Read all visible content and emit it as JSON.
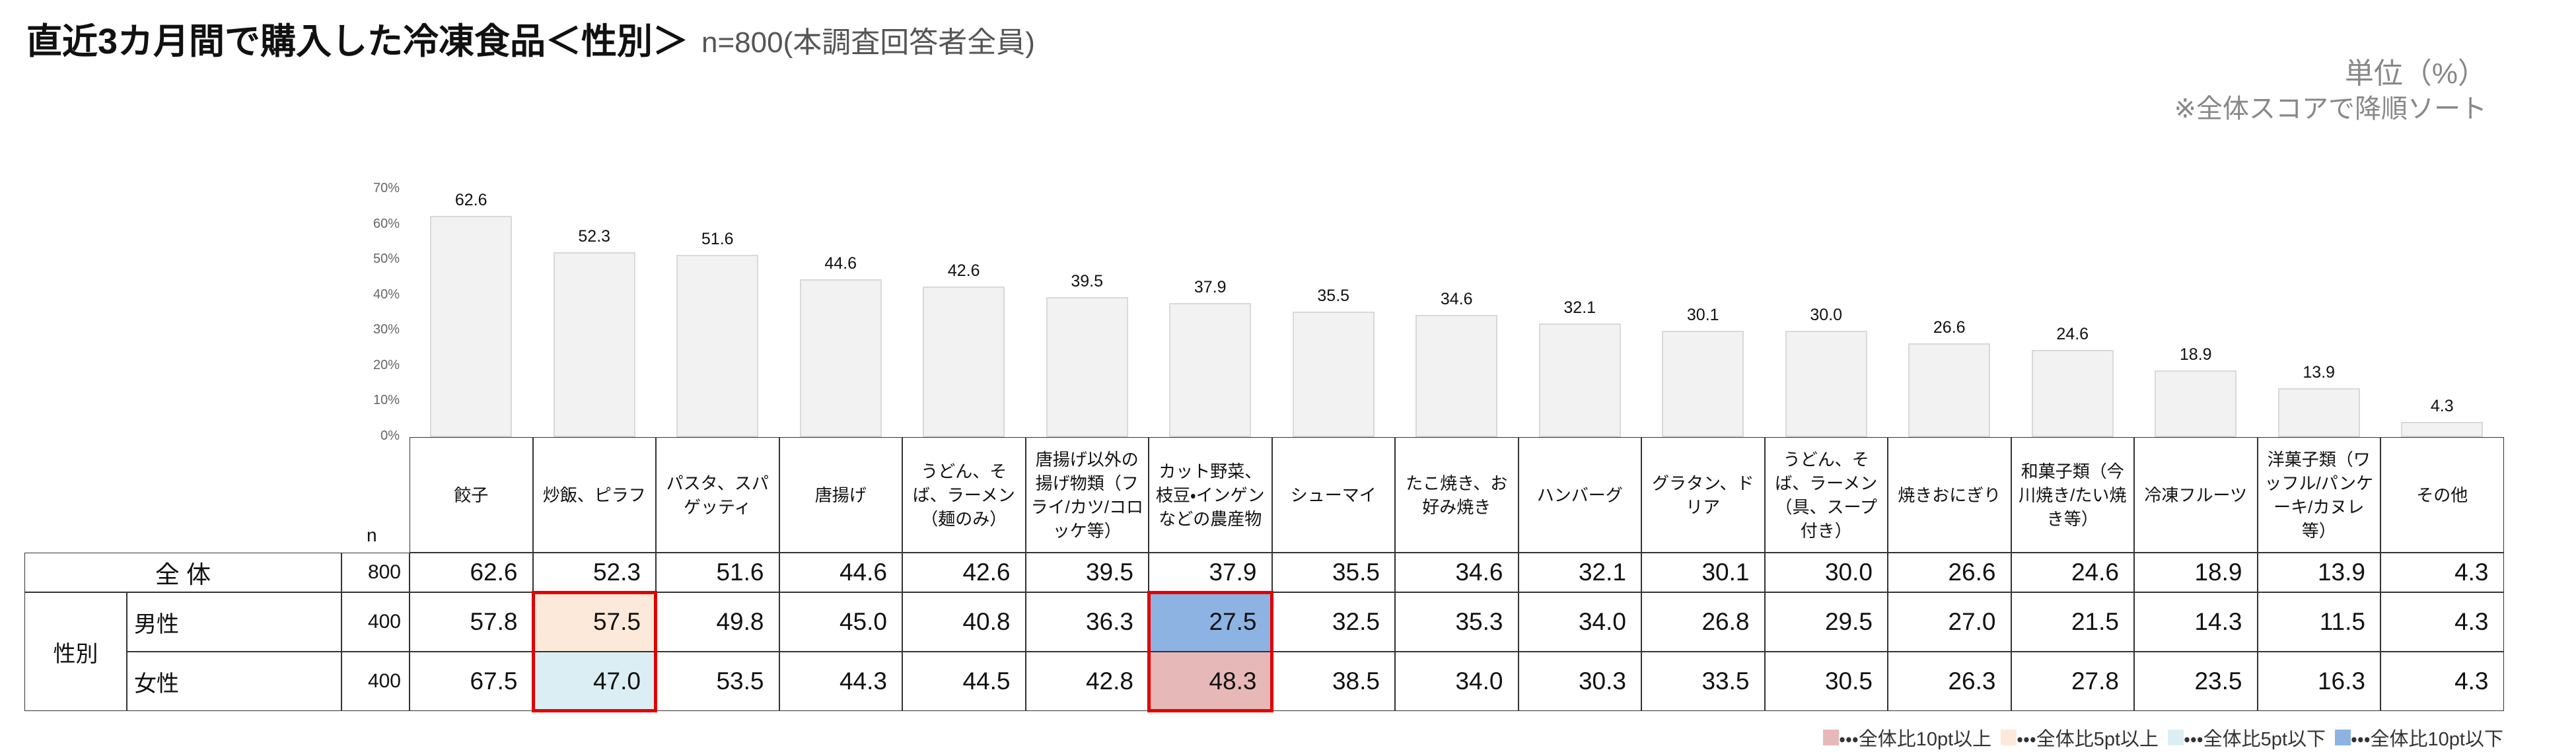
{
  "chart_data": {
    "type": "bar",
    "title": "直近3カ月間で購入した冷凍食品＜性別＞",
    "subtitle": "n=800(本調査回答者全員)",
    "unit": "単位（%）",
    "note": "※全体スコアで降順ソート",
    "categories": [
      "餃子",
      "炒飯、ピラフ",
      "パスタ、スパゲッティ",
      "唐揚げ",
      "うどん、そば、ラーメン（麺のみ）",
      "唐揚げ以外の揚げ物類（フライ/カツ/コロッケ等）",
      "カット野菜、枝豆・インゲンなどの農産物",
      "シューマイ",
      "たこ焼き、お好み焼き",
      "ハンバーグ",
      "グラタン、ドリア",
      "うどん、そば、ラーメン（具、スープ付き）",
      "焼きおにぎり",
      "和菓子類（今川焼き/たい焼き等）",
      "冷凍フルーツ",
      "洋菓子類（ワッフル/パンケーキ/カヌレ等）",
      "その他"
    ],
    "values": [
      62.6,
      52.3,
      51.6,
      44.6,
      42.6,
      39.5,
      37.9,
      35.5,
      34.6,
      32.1,
      30.1,
      30.0,
      26.6,
      24.6,
      18.9,
      13.9,
      4.3
    ],
    "value_labels": [
      "62.6",
      "52.3",
      "51.6",
      "44.6",
      "42.6",
      "39.5",
      "37.9",
      "35.5",
      "34.6",
      "32.1",
      "30.1",
      "30.0",
      "26.6",
      "24.6",
      "18.9",
      "13.9",
      "4.3"
    ],
    "color": "#f2f2f2",
    "ylim": [
      0,
      70
    ],
    "yticks": [
      {
        "value": 0,
        "label": "0%"
      },
      {
        "value": 10,
        "label": "10%"
      },
      {
        "value": 20,
        "label": "20%"
      },
      {
        "value": 30,
        "label": "30%"
      },
      {
        "value": 40,
        "label": "40%"
      },
      {
        "value": 50,
        "label": "50%"
      },
      {
        "value": 60,
        "label": "60%"
      },
      {
        "value": 70,
        "label": "70%"
      }
    ]
  },
  "table": {
    "n_header": "n",
    "total_label": "全 体",
    "total_n": "800",
    "group": "性別",
    "rows": [
      {
        "label": "男性",
        "n": "400",
        "values": [
          "57.8",
          "57.5",
          "49.8",
          "45.0",
          "40.8",
          "36.3",
          "27.5",
          "32.5",
          "35.3",
          "34.0",
          "26.8",
          "29.5",
          "27.0",
          "21.5",
          "14.3",
          "11.5",
          "4.3"
        ],
        "cell_legend": [
          null,
          1,
          null,
          null,
          null,
          null,
          3,
          null,
          null,
          null,
          null,
          null,
          null,
          null,
          null,
          null,
          null
        ]
      },
      {
        "label": "女性",
        "n": "400",
        "values": [
          "67.5",
          "47.0",
          "53.5",
          "44.3",
          "44.5",
          "42.8",
          "48.3",
          "38.5",
          "34.0",
          "30.3",
          "33.5",
          "30.5",
          "26.3",
          "27.8",
          "23.5",
          "16.3",
          "4.3"
        ],
        "cell_legend": [
          null,
          2,
          null,
          null,
          null,
          null,
          0,
          null,
          null,
          null,
          null,
          null,
          null,
          null,
          null,
          null,
          null
        ]
      }
    ]
  },
  "legend": [
    {
      "label": "・・・全体比10pt以上",
      "color": "#e6b9b8"
    },
    {
      "label": "・・・全体比5pt以上",
      "color": "#fde9d9"
    },
    {
      "label": "・・・全体比5pt以下",
      "color": "#dbeef3"
    },
    {
      "label": "・・・全体比10pt以下",
      "color": "#8db3e2"
    }
  ]
}
